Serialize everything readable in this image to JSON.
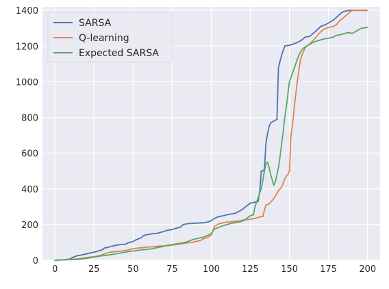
{
  "chart_data": {
    "type": "line",
    "title": "",
    "xlabel": "",
    "ylabel": "",
    "xlim": [
      -8,
      208
    ],
    "ylim": [
      0,
      1420
    ],
    "xticks": [
      0,
      25,
      50,
      75,
      100,
      125,
      150,
      175,
      200
    ],
    "yticks": [
      0,
      200,
      400,
      600,
      800,
      1000,
      1200,
      1400
    ],
    "grid": true,
    "legend_position": "top-left",
    "style": {
      "plot_background": "#eaeaf2",
      "grid_color": "#ffffff",
      "tick_label_color": "#262626"
    },
    "series": [
      {
        "name": "SARSA",
        "color": "#4c72b0",
        "points": [
          [
            0,
            0
          ],
          [
            5,
            2
          ],
          [
            8,
            5
          ],
          [
            10,
            8
          ],
          [
            11,
            15
          ],
          [
            12,
            18
          ],
          [
            14,
            25
          ],
          [
            16,
            28
          ],
          [
            18,
            32
          ],
          [
            20,
            35
          ],
          [
            22,
            40
          ],
          [
            25,
            45
          ],
          [
            27,
            50
          ],
          [
            30,
            58
          ],
          [
            32,
            70
          ],
          [
            34,
            72
          ],
          [
            36,
            78
          ],
          [
            38,
            82
          ],
          [
            40,
            85
          ],
          [
            42,
            88
          ],
          [
            45,
            90
          ],
          [
            47,
            98
          ],
          [
            50,
            105
          ],
          [
            52,
            115
          ],
          [
            55,
            125
          ],
          [
            57,
            140
          ],
          [
            60,
            145
          ],
          [
            62,
            148
          ],
          [
            65,
            150
          ],
          [
            67,
            155
          ],
          [
            70,
            162
          ],
          [
            72,
            168
          ],
          [
            75,
            172
          ],
          [
            77,
            178
          ],
          [
            80,
            185
          ],
          [
            82,
            200
          ],
          [
            85,
            205
          ],
          [
            90,
            208
          ],
          [
            95,
            210
          ],
          [
            98,
            215
          ],
          [
            100,
            222
          ],
          [
            102,
            235
          ],
          [
            105,
            245
          ],
          [
            108,
            250
          ],
          [
            110,
            255
          ],
          [
            112,
            258
          ],
          [
            115,
            262
          ],
          [
            117,
            270
          ],
          [
            120,
            285
          ],
          [
            122,
            300
          ],
          [
            125,
            320
          ],
          [
            128,
            325
          ],
          [
            130,
            330
          ],
          [
            131,
            390
          ],
          [
            132,
            500
          ],
          [
            133,
            500
          ],
          [
            134,
            510
          ],
          [
            135,
            660
          ],
          [
            136,
            710
          ],
          [
            137,
            750
          ],
          [
            138,
            770
          ],
          [
            140,
            780
          ],
          [
            142,
            790
          ],
          [
            143,
            1080
          ],
          [
            145,
            1150
          ],
          [
            147,
            1200
          ],
          [
            150,
            1205
          ],
          [
            152,
            1210
          ],
          [
            155,
            1220
          ],
          [
            158,
            1235
          ],
          [
            160,
            1250
          ],
          [
            163,
            1255
          ],
          [
            165,
            1270
          ],
          [
            167,
            1285
          ],
          [
            170,
            1310
          ],
          [
            173,
            1320
          ],
          [
            175,
            1330
          ],
          [
            178,
            1345
          ],
          [
            180,
            1360
          ],
          [
            183,
            1385
          ],
          [
            185,
            1395
          ],
          [
            188,
            1400
          ],
          [
            190,
            1400
          ],
          [
            195,
            1400
          ],
          [
            200,
            1400
          ]
        ]
      },
      {
        "name": "Q-learning",
        "color": "#dd8452",
        "points": [
          [
            0,
            0
          ],
          [
            5,
            2
          ],
          [
            10,
            5
          ],
          [
            15,
            8
          ],
          [
            18,
            12
          ],
          [
            20,
            15
          ],
          [
            23,
            18
          ],
          [
            25,
            20
          ],
          [
            28,
            25
          ],
          [
            30,
            30
          ],
          [
            33,
            40
          ],
          [
            35,
            45
          ],
          [
            38,
            48
          ],
          [
            40,
            50
          ],
          [
            42,
            50
          ],
          [
            45,
            55
          ],
          [
            48,
            60
          ],
          [
            50,
            65
          ],
          [
            53,
            68
          ],
          [
            55,
            70
          ],
          [
            58,
            72
          ],
          [
            60,
            75
          ],
          [
            63,
            75
          ],
          [
            65,
            78
          ],
          [
            68,
            80
          ],
          [
            70,
            80
          ],
          [
            73,
            82
          ],
          [
            75,
            85
          ],
          [
            78,
            88
          ],
          [
            80,
            90
          ],
          [
            83,
            95
          ],
          [
            85,
            98
          ],
          [
            88,
            100
          ],
          [
            90,
            105
          ],
          [
            93,
            110
          ],
          [
            95,
            120
          ],
          [
            98,
            130
          ],
          [
            100,
            140
          ],
          [
            102,
            190
          ],
          [
            105,
            205
          ],
          [
            108,
            210
          ],
          [
            110,
            215
          ],
          [
            112,
            215
          ],
          [
            115,
            218
          ],
          [
            118,
            220
          ],
          [
            120,
            225
          ],
          [
            125,
            230
          ],
          [
            128,
            235
          ],
          [
            130,
            240
          ],
          [
            132,
            245
          ],
          [
            133,
            245
          ],
          [
            134,
            280
          ],
          [
            135,
            310
          ],
          [
            137,
            315
          ],
          [
            138,
            325
          ],
          [
            140,
            345
          ],
          [
            142,
            375
          ],
          [
            143,
            390
          ],
          [
            145,
            410
          ],
          [
            147,
            455
          ],
          [
            148,
            470
          ],
          [
            149,
            480
          ],
          [
            150,
            500
          ],
          [
            151,
            700
          ],
          [
            152,
            760
          ],
          [
            153,
            850
          ],
          [
            155,
            1000
          ],
          [
            157,
            1120
          ],
          [
            158,
            1150
          ],
          [
            160,
            1190
          ],
          [
            162,
            1205
          ],
          [
            165,
            1230
          ],
          [
            168,
            1260
          ],
          [
            170,
            1280
          ],
          [
            172,
            1295
          ],
          [
            175,
            1305
          ],
          [
            178,
            1310
          ],
          [
            180,
            1320
          ],
          [
            182,
            1340
          ],
          [
            184,
            1355
          ],
          [
            186,
            1370
          ],
          [
            188,
            1385
          ],
          [
            190,
            1400
          ],
          [
            195,
            1400
          ],
          [
            200,
            1400
          ]
        ]
      },
      {
        "name": "Expected SARSA",
        "color": "#55a868",
        "points": [
          [
            0,
            0
          ],
          [
            5,
            2
          ],
          [
            10,
            3
          ],
          [
            15,
            5
          ],
          [
            18,
            8
          ],
          [
            20,
            10
          ],
          [
            23,
            15
          ],
          [
            25,
            18
          ],
          [
            28,
            22
          ],
          [
            30,
            25
          ],
          [
            33,
            28
          ],
          [
            35,
            30
          ],
          [
            38,
            35
          ],
          [
            40,
            38
          ],
          [
            42,
            40
          ],
          [
            45,
            45
          ],
          [
            48,
            50
          ],
          [
            50,
            52
          ],
          [
            53,
            55
          ],
          [
            55,
            58
          ],
          [
            58,
            60
          ],
          [
            60,
            62
          ],
          [
            63,
            65
          ],
          [
            65,
            70
          ],
          [
            68,
            75
          ],
          [
            70,
            80
          ],
          [
            73,
            85
          ],
          [
            75,
            88
          ],
          [
            78,
            92
          ],
          [
            80,
            95
          ],
          [
            83,
            100
          ],
          [
            85,
            105
          ],
          [
            88,
            115
          ],
          [
            90,
            120
          ],
          [
            93,
            125
          ],
          [
            95,
            130
          ],
          [
            98,
            140
          ],
          [
            100,
            150
          ],
          [
            102,
            175
          ],
          [
            105,
            185
          ],
          [
            108,
            195
          ],
          [
            110,
            200
          ],
          [
            112,
            205
          ],
          [
            115,
            210
          ],
          [
            118,
            215
          ],
          [
            120,
            220
          ],
          [
            122,
            230
          ],
          [
            125,
            250
          ],
          [
            127,
            255
          ],
          [
            128,
            300
          ],
          [
            130,
            350
          ],
          [
            131,
            380
          ],
          [
            132,
            400
          ],
          [
            133,
            450
          ],
          [
            134,
            500
          ],
          [
            135,
            540
          ],
          [
            136,
            550
          ],
          [
            137,
            520
          ],
          [
            138,
            480
          ],
          [
            139,
            450
          ],
          [
            140,
            420
          ],
          [
            141,
            440
          ],
          [
            142,
            480
          ],
          [
            143,
            520
          ],
          [
            144,
            580
          ],
          [
            145,
            650
          ],
          [
            146,
            720
          ],
          [
            147,
            800
          ],
          [
            148,
            860
          ],
          [
            150,
            1000
          ],
          [
            152,
            1050
          ],
          [
            154,
            1100
          ],
          [
            156,
            1150
          ],
          [
            158,
            1180
          ],
          [
            160,
            1195
          ],
          [
            163,
            1210
          ],
          [
            165,
            1220
          ],
          [
            168,
            1230
          ],
          [
            170,
            1235
          ],
          [
            172,
            1240
          ],
          [
            175,
            1245
          ],
          [
            178,
            1250
          ],
          [
            180,
            1260
          ],
          [
            183,
            1265
          ],
          [
            185,
            1270
          ],
          [
            187,
            1275
          ],
          [
            189,
            1275
          ],
          [
            190,
            1270
          ],
          [
            192,
            1280
          ],
          [
            194,
            1290
          ],
          [
            196,
            1300
          ],
          [
            198,
            1302
          ],
          [
            200,
            1305
          ]
        ]
      }
    ]
  }
}
